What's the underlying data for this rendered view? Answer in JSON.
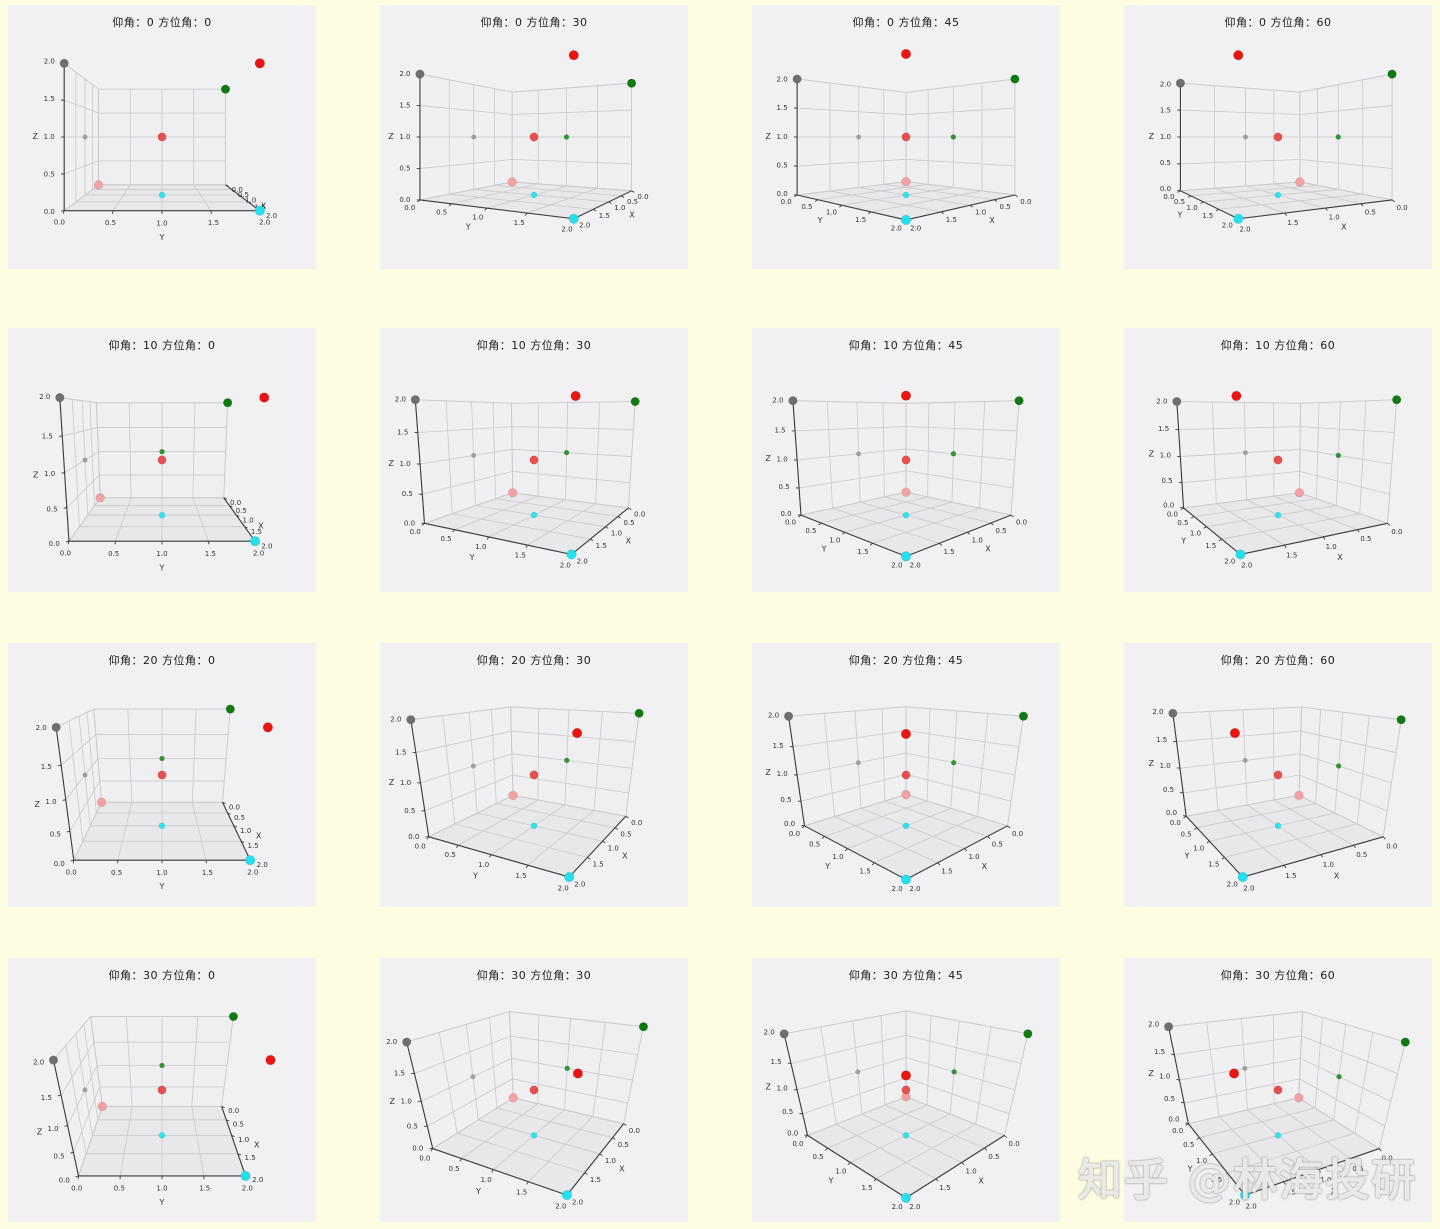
{
  "figure": {
    "background": "#fffde1",
    "panel_background": "#f1f1f3",
    "watermark": {
      "text": "知乎 @林海投研",
      "color": "rgba(255,255,255,0.82)"
    }
  },
  "chart_data": {
    "type": "scatter",
    "projection": "3d",
    "grid": true,
    "axis": {
      "xlabel": "X",
      "ylabel": "Y",
      "zlabel": "Z",
      "xlim": [
        0,
        2
      ],
      "ylim": [
        0,
        2
      ],
      "zlim": [
        0,
        2
      ],
      "ticks": [
        0,
        0.5,
        1,
        1.5,
        2
      ],
      "tick_labels": [
        "0.0",
        "0.5",
        "1.0",
        "1.5",
        "2.0"
      ]
    },
    "style": {
      "pane_floor": "#e8e8eb",
      "pane_wall_x": "#efeff1",
      "pane_wall_y": "#f0f0f2",
      "pane_edge": "#d9d9d9",
      "grid_color": "#c9c9cc",
      "spine_color": "#3c3c3c",
      "tick_text_color": "#333333",
      "title_color": "#1c1c1c"
    },
    "points": [
      {
        "name": "gray-large",
        "x": 2,
        "y": 0,
        "z": 2,
        "color": "#6f6f6f",
        "r": 4.3
      },
      {
        "name": "gray-small",
        "x": 1,
        "y": 0,
        "z": 1,
        "color": "#a0a0a0",
        "r": 2.3
      },
      {
        "name": "green-large",
        "x": 0,
        "y": 2,
        "z": 2,
        "color": "#107a10",
        "r": 4.3
      },
      {
        "name": "green-small",
        "x": 0,
        "y": 1,
        "z": 1,
        "color": "#2f9632",
        "r": 2.5
      },
      {
        "name": "red-large",
        "x": 2,
        "y": 2,
        "z": 2,
        "color": "#e81510",
        "r": 4.8
      },
      {
        "name": "red-medium",
        "x": 1,
        "y": 1,
        "z": 1,
        "color": "#e85050",
        "r": 4.2
      },
      {
        "name": "pink",
        "x": 0,
        "y": 0,
        "z": 0,
        "color": "#f2a2a2",
        "r": 4.4
      },
      {
        "name": "cyan-small",
        "x": 1,
        "y": 1,
        "z": 0,
        "color": "#2ee2ee",
        "r": 3.0
      },
      {
        "name": "cyan-large",
        "x": 2,
        "y": 2,
        "z": 0,
        "color": "#25dfec",
        "r": 4.8
      }
    ],
    "views": [
      {
        "elev": 0,
        "azim": 0,
        "title": "仰角：0  方位角：0"
      },
      {
        "elev": 0,
        "azim": 30,
        "title": "仰角：0  方位角：30"
      },
      {
        "elev": 0,
        "azim": 45,
        "title": "仰角：0  方位角：45"
      },
      {
        "elev": 0,
        "azim": 60,
        "title": "仰角：0  方位角：60"
      },
      {
        "elev": 10,
        "azim": 0,
        "title": "仰角：10  方位角：0"
      },
      {
        "elev": 10,
        "azim": 30,
        "title": "仰角：10  方位角：30"
      },
      {
        "elev": 10,
        "azim": 45,
        "title": "仰角：10  方位角：45"
      },
      {
        "elev": 10,
        "azim": 60,
        "title": "仰角：10  方位角：60"
      },
      {
        "elev": 20,
        "azim": 0,
        "title": "仰角：20  方位角：0"
      },
      {
        "elev": 20,
        "azim": 30,
        "title": "仰角：20  方位角：30"
      },
      {
        "elev": 20,
        "azim": 45,
        "title": "仰角：20  方位角：45"
      },
      {
        "elev": 20,
        "azim": 60,
        "title": "仰角：20  方位角：60"
      },
      {
        "elev": 30,
        "azim": 0,
        "title": "仰角：30  方位角：0"
      },
      {
        "elev": 30,
        "azim": 30,
        "title": "仰角：30  方位角：30"
      },
      {
        "elev": 30,
        "azim": 45,
        "title": "仰角：30  方位角：45"
      },
      {
        "elev": 30,
        "azim": 60,
        "title": "仰角：30  方位角：60"
      }
    ]
  }
}
